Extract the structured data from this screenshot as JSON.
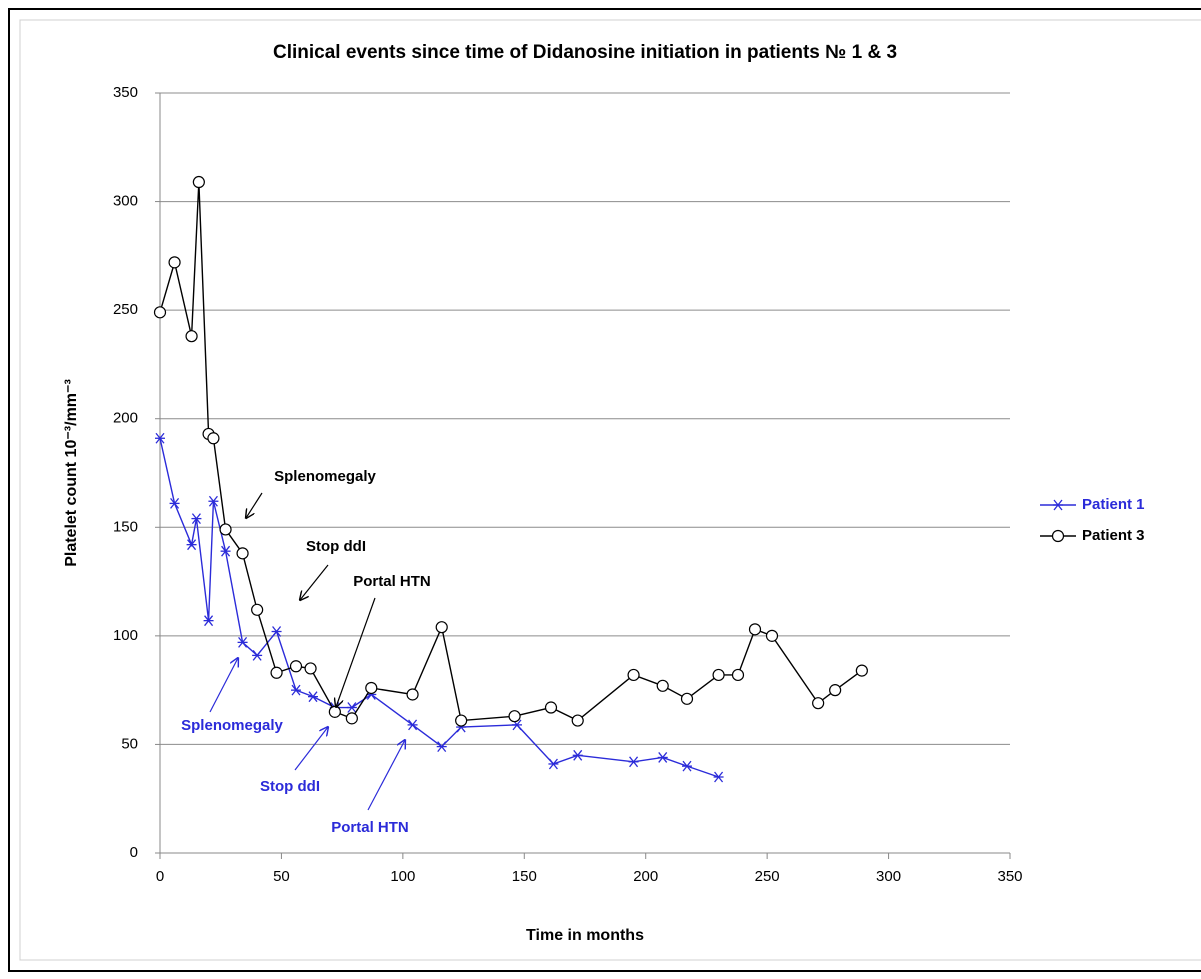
{
  "chart_data": {
    "type": "line",
    "title": "Clinical events since time of Didanosine initiation  in patients № 1 & 3",
    "x_label": "Time in months",
    "y_label": "Platelet count 10⁻³/mm⁻³",
    "xlim": [
      0,
      350
    ],
    "xticks": [
      0,
      50,
      100,
      150,
      200,
      250,
      300,
      350
    ],
    "ylim": [
      0,
      350
    ],
    "yticks": [
      0,
      50,
      100,
      150,
      200,
      250,
      300,
      350
    ],
    "grid": true,
    "legend": "right",
    "series": [
      {
        "name": "Patient 1",
        "color": "#2b2bd9",
        "marker": "star",
        "x": [
          0,
          6,
          13,
          15,
          20,
          22,
          27,
          34,
          40,
          48,
          56,
          63,
          72,
          79,
          87,
          104,
          116,
          124,
          147,
          162,
          172,
          195,
          207,
          217,
          230
        ],
        "values": [
          191,
          161,
          142,
          154,
          107,
          162,
          139,
          97,
          91,
          102,
          75,
          72,
          67,
          67,
          73,
          59,
          49,
          58,
          59,
          41,
          45,
          42,
          44,
          40,
          35
        ]
      },
      {
        "name": "Patient 3",
        "color": "#000000",
        "marker": "circle",
        "x": [
          0,
          6,
          13,
          16,
          20,
          22,
          27,
          34,
          40,
          48,
          56,
          62,
          72,
          79,
          87,
          104,
          116,
          124,
          146,
          161,
          172,
          195,
          207,
          217,
          230,
          238,
          245,
          252,
          271,
          278,
          289
        ],
        "values": [
          249,
          272,
          238,
          309,
          193,
          191,
          149,
          138,
          112,
          83,
          86,
          85,
          65,
          62,
          76,
          73,
          104,
          61,
          63,
          67,
          61,
          82,
          77,
          71,
          82,
          82,
          103,
          100,
          69,
          75,
          84
        ]
      }
    ],
    "annotations": [
      {
        "text": "Splenomegaly",
        "color": "#000000"
      },
      {
        "text": "Stop ddI",
        "color": "#000000"
      },
      {
        "text": "Portal HTN",
        "color": "#000000"
      },
      {
        "text": "Splenomegaly",
        "color": "#2b2bd9"
      },
      {
        "text": "Stop ddI",
        "color": "#2b2bd9"
      },
      {
        "text": "Portal HTN",
        "color": "#2b2bd9"
      }
    ]
  }
}
